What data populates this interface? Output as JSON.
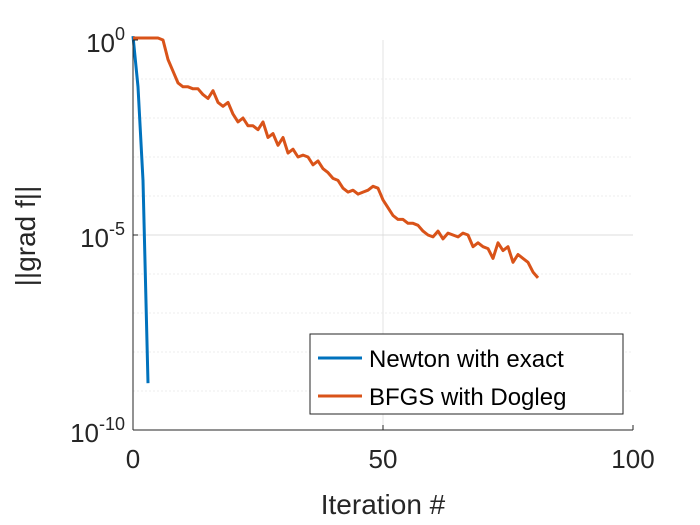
{
  "chart_data": {
    "type": "line",
    "xlabel": "Iteration #",
    "ylabel": "||grad f||",
    "xlim": [
      0,
      100
    ],
    "ylim_log10": [
      -10,
      0
    ],
    "y_scale": "log",
    "grid": true,
    "legend_placement": "bottom-right",
    "x_ticks": [
      {
        "value": 0,
        "label": "0"
      },
      {
        "value": 50,
        "label": "50"
      },
      {
        "value": 100,
        "label": "100"
      }
    ],
    "y_ticks": [
      {
        "value": 0,
        "base": "10",
        "exp": "0"
      },
      {
        "value": -5,
        "base": "10",
        "exp": "-5"
      },
      {
        "value": -10,
        "base": "10",
        "exp": "-10"
      }
    ],
    "series": [
      {
        "name": "Newton with exact",
        "color": "#0072BD",
        "points": [
          [
            0,
            0.1
          ],
          [
            1,
            -1.2
          ],
          [
            2,
            -3.6
          ],
          [
            3,
            -8.8
          ]
        ]
      },
      {
        "name": "BFGS with Dogleg",
        "color": "#D95319",
        "points": [
          [
            0,
            0.05
          ],
          [
            2,
            0.05
          ],
          [
            3,
            0.05
          ],
          [
            4,
            0.05
          ],
          [
            5,
            0.05
          ],
          [
            6,
            0.0
          ],
          [
            7,
            -0.5
          ],
          [
            8,
            -0.8
          ],
          [
            9,
            -1.1
          ],
          [
            10,
            -1.2
          ],
          [
            11,
            -1.2
          ],
          [
            12,
            -1.25
          ],
          [
            13,
            -1.25
          ],
          [
            14,
            -1.4
          ],
          [
            15,
            -1.5
          ],
          [
            16,
            -1.3
          ],
          [
            17,
            -1.6
          ],
          [
            18,
            -1.7
          ],
          [
            19,
            -1.6
          ],
          [
            20,
            -1.9
          ],
          [
            21,
            -2.1
          ],
          [
            22,
            -2.0
          ],
          [
            23,
            -2.2
          ],
          [
            24,
            -2.2
          ],
          [
            25,
            -2.3
          ],
          [
            26,
            -2.1
          ],
          [
            27,
            -2.5
          ],
          [
            28,
            -2.4
          ],
          [
            29,
            -2.7
          ],
          [
            30,
            -2.5
          ],
          [
            31,
            -2.9
          ],
          [
            32,
            -2.8
          ],
          [
            33,
            -3.0
          ],
          [
            34,
            -2.95
          ],
          [
            35,
            -3.0
          ],
          [
            36,
            -3.2
          ],
          [
            37,
            -3.1
          ],
          [
            38,
            -3.3
          ],
          [
            39,
            -3.4
          ],
          [
            40,
            -3.55
          ],
          [
            41,
            -3.6
          ],
          [
            42,
            -3.8
          ],
          [
            43,
            -3.9
          ],
          [
            44,
            -3.85
          ],
          [
            45,
            -3.95
          ],
          [
            46,
            -3.9
          ],
          [
            47,
            -3.85
          ],
          [
            48,
            -3.75
          ],
          [
            49,
            -3.8
          ],
          [
            50,
            -4.1
          ],
          [
            51,
            -4.3
          ],
          [
            52,
            -4.5
          ],
          [
            53,
            -4.6
          ],
          [
            54,
            -4.6
          ],
          [
            55,
            -4.7
          ],
          [
            56,
            -4.7
          ],
          [
            57,
            -4.75
          ],
          [
            58,
            -4.9
          ],
          [
            59,
            -5.0
          ],
          [
            60,
            -5.05
          ],
          [
            61,
            -4.9
          ],
          [
            62,
            -5.1
          ],
          [
            63,
            -4.95
          ],
          [
            64,
            -5.0
          ],
          [
            65,
            -5.05
          ],
          [
            66,
            -4.95
          ],
          [
            67,
            -5.0
          ],
          [
            68,
            -5.3
          ],
          [
            69,
            -5.2
          ],
          [
            70,
            -5.3
          ],
          [
            71,
            -5.35
          ],
          [
            72,
            -5.6
          ],
          [
            73,
            -5.2
          ],
          [
            74,
            -5.4
          ],
          [
            75,
            -5.3
          ],
          [
            76,
            -5.7
          ],
          [
            77,
            -5.5
          ],
          [
            78,
            -5.6
          ],
          [
            79,
            -5.7
          ],
          [
            80,
            -5.95
          ],
          [
            81,
            -6.1
          ]
        ]
      }
    ]
  }
}
